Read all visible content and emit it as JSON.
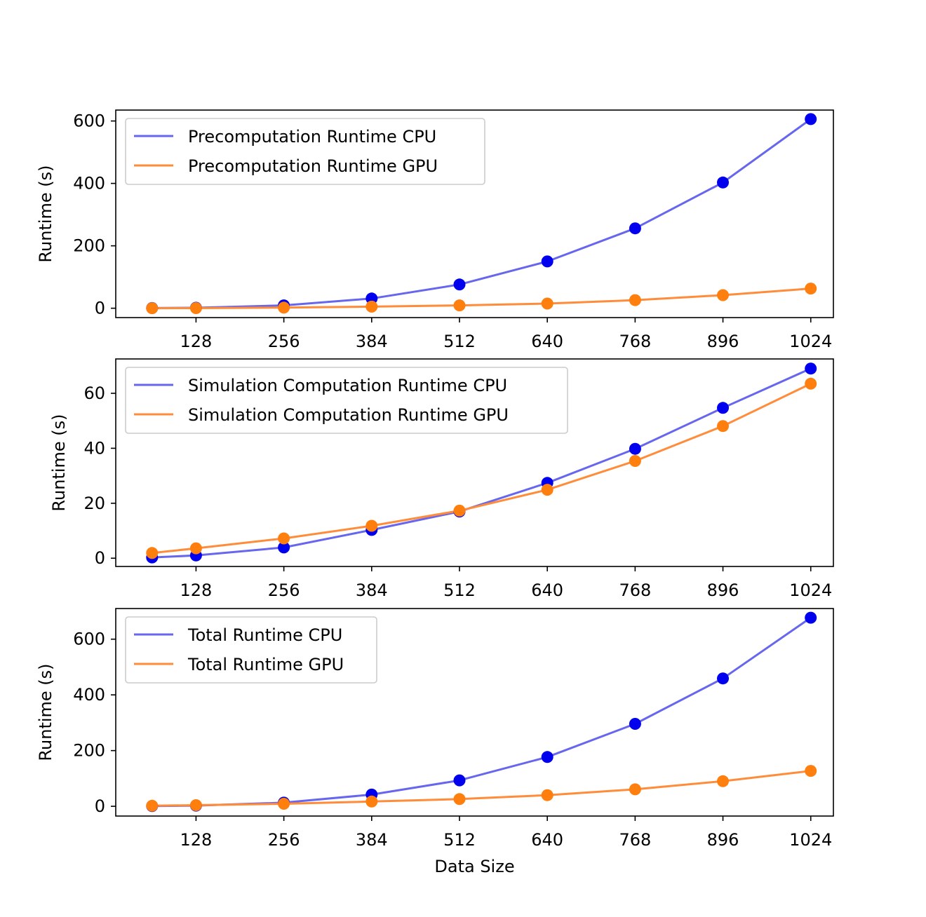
{
  "colors": {
    "cpu_line": "#6666ee",
    "cpu_marker": "#0000ee",
    "gpu_line": "#ff8c3a",
    "gpu_marker": "#ff7f0e"
  },
  "chart_data": [
    {
      "type": "line",
      "title": "",
      "xlabel": "",
      "ylabel": "Runtime (s)",
      "x": [
        64,
        128,
        256,
        384,
        512,
        640,
        768,
        896,
        1024
      ],
      "xticks": [
        128,
        256,
        384,
        512,
        640,
        768,
        896,
        1024
      ],
      "yticks": [
        0,
        200,
        400,
        600
      ],
      "xlim": [
        11,
        1057
      ],
      "ylim": [
        -30,
        635
      ],
      "grid": false,
      "legend": "upper-left",
      "series": [
        {
          "name": "Precomputation Runtime CPU",
          "values": [
            0.5,
            1.5,
            9,
            31,
            76,
            150,
            256,
            403,
            606
          ]
        },
        {
          "name": "Precomputation Runtime GPU",
          "values": [
            0.2,
            0.3,
            2,
            5,
            9,
            15,
            26,
            42,
            63
          ]
        }
      ]
    },
    {
      "type": "line",
      "title": "",
      "xlabel": "",
      "ylabel": "Runtime (s)",
      "x": [
        64,
        128,
        256,
        384,
        512,
        640,
        768,
        896,
        1024
      ],
      "xticks": [
        128,
        256,
        384,
        512,
        640,
        768,
        896,
        1024
      ],
      "yticks": [
        0,
        20,
        40,
        60
      ],
      "xlim": [
        11,
        1057
      ],
      "ylim": [
        -3,
        72.5
      ],
      "grid": false,
      "legend": "upper-left",
      "series": [
        {
          "name": "Simulation Computation Runtime CPU",
          "values": [
            0.3,
            1.0,
            3.9,
            10.3,
            17.0,
            27.4,
            39.8,
            54.7,
            69.0
          ]
        },
        {
          "name": "Simulation Computation Runtime GPU",
          "values": [
            1.9,
            3.6,
            7.2,
            11.8,
            17.3,
            24.9,
            35.4,
            48.1,
            63.5
          ]
        }
      ]
    },
    {
      "type": "line",
      "title": "",
      "xlabel": "Data Size",
      "ylabel": "Runtime (s)",
      "x": [
        64,
        128,
        256,
        384,
        512,
        640,
        768,
        896,
        1024
      ],
      "xticks": [
        128,
        256,
        384,
        512,
        640,
        768,
        896,
        1024
      ],
      "yticks": [
        0,
        200,
        400,
        600
      ],
      "xlim": [
        11,
        1057
      ],
      "ylim": [
        -35,
        710
      ],
      "grid": false,
      "legend": "upper-left",
      "series": [
        {
          "name": "Total Runtime CPU",
          "values": [
            0.8,
            2.5,
            13,
            42,
            93,
            177,
            296,
            459,
            677
          ]
        },
        {
          "name": "Total Runtime GPU",
          "values": [
            2.1,
            3.9,
            9,
            17,
            26,
            40,
            61,
            90,
            127
          ]
        }
      ]
    }
  ]
}
